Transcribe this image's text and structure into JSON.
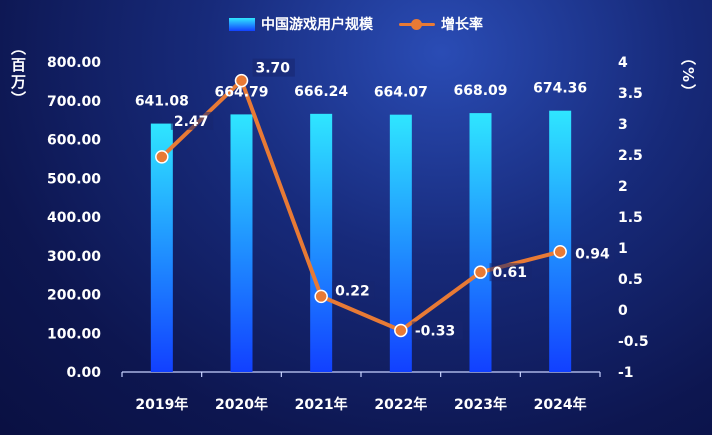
{
  "legend": {
    "bar_label": "中国游戏用户规模",
    "line_label": "增长率"
  },
  "left_unit": "（百万）",
  "right_unit": "（%）",
  "colors": {
    "bar_top": "#2fe6ff",
    "bar_bottom": "#1240ff",
    "line": "#e87a35",
    "text": "#ffffff",
    "axis": "#c8d2ff"
  },
  "chart_data": {
    "type": "bar",
    "categories": [
      "2019年",
      "2020年",
      "2021年",
      "2022年",
      "2023年",
      "2024年"
    ],
    "series": [
      {
        "name": "中国游戏用户规模",
        "type": "bar",
        "axis": "left",
        "values": [
          641.08,
          664.79,
          666.24,
          664.07,
          668.09,
          674.36
        ],
        "labels": [
          "641.08",
          "664.79",
          "666.24",
          "664.07",
          "668.09",
          "674.36"
        ]
      },
      {
        "name": "增长率",
        "type": "line",
        "axis": "right",
        "values": [
          2.47,
          3.7,
          0.22,
          -0.33,
          0.61,
          0.94
        ],
        "labels": [
          "2.47",
          "3.70",
          "0.22",
          "-0.33",
          "0.61",
          "0.94"
        ]
      }
    ],
    "left_axis": {
      "ylim": [
        0,
        800
      ],
      "ticks": [
        "0.00",
        "100.00",
        "200.00",
        "300.00",
        "400.00",
        "500.00",
        "600.00",
        "700.00",
        "800.00"
      ]
    },
    "right_axis": {
      "ylim": [
        -1,
        4
      ],
      "ticks": [
        "-1",
        "-0.5",
        "0",
        "0.5",
        "1",
        "1.5",
        "2",
        "2.5",
        "3",
        "3.5",
        "4"
      ]
    },
    "legend_position": "top-center",
    "grid": false
  }
}
